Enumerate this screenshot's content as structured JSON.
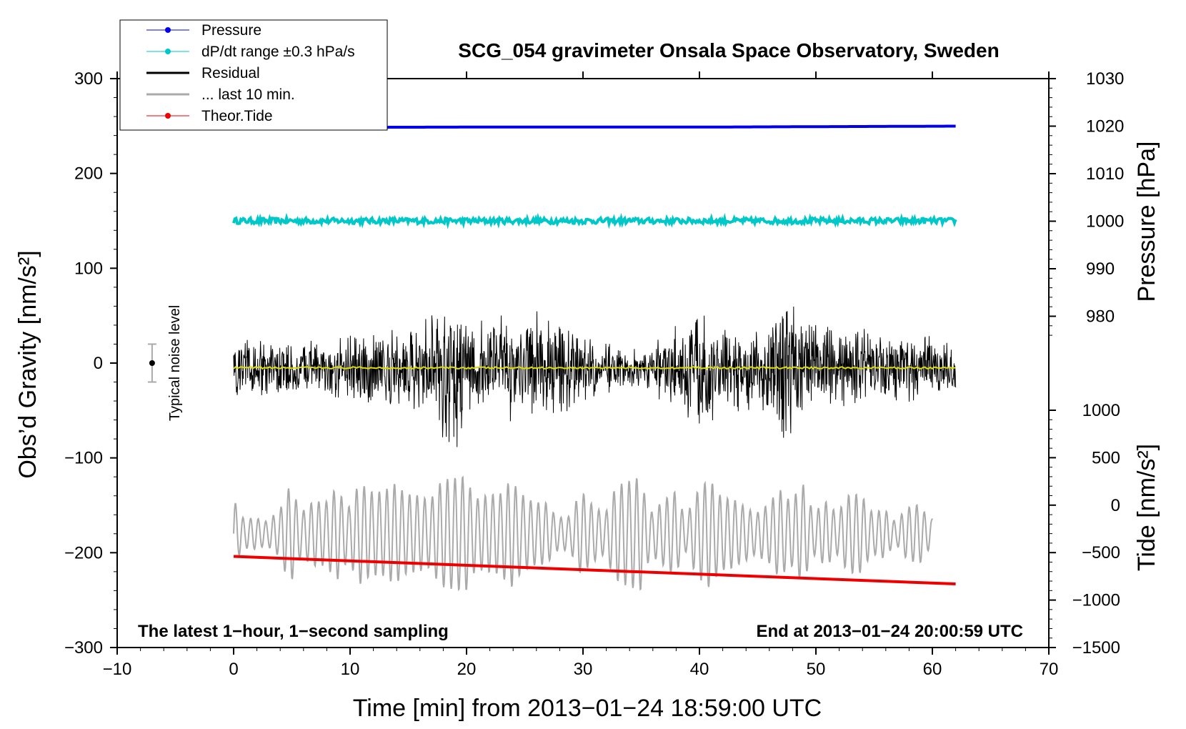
{
  "chart_data": {
    "type": "line",
    "title": "SCG_054 gravimeter Onsala Space Observatory, Sweden",
    "xlabel": "Time [min] from 2013−01−24 18:59:00 UTC",
    "ylabel": "Obs’d Gravity [nm/s²]",
    "ylabel_right_top": "Pressure [hPa]",
    "ylabel_right_bottom": "Tide [nm/s²]",
    "xlim": [
      -10,
      70
    ],
    "ylim": [
      -300,
      300
    ],
    "pressure_axis_range": [
      970,
      1030
    ],
    "tide_axis_range": [
      -1500,
      1000
    ],
    "x_ticks": [
      "−10",
      "0",
      "10",
      "20",
      "30",
      "40",
      "50",
      "60",
      "70"
    ],
    "y_ticks": [
      "−300",
      "−200",
      "−100",
      "0",
      "100",
      "200",
      "300"
    ],
    "pressure_ticks": [
      "980",
      "990",
      "1000",
      "1010",
      "1020",
      "1030"
    ],
    "tide_ticks": [
      "−1500",
      "−1000",
      "−500",
      "0",
      "500",
      "1000"
    ],
    "legend": [
      {
        "label": "Pressure",
        "color": "#0000ee",
        "marker": true
      },
      {
        "label": "dP/dt range ±0.3 hPa/s",
        "color": "#00c8c8",
        "marker": true
      },
      {
        "label": "Residual",
        "color": "#000000",
        "marker": false
      },
      {
        "label": "... last 10 min.",
        "color": "#aaaaaa",
        "marker": false
      },
      {
        "label": "Theor.Tide",
        "color": "#ee0000",
        "marker": true
      }
    ],
    "series": [
      {
        "name": "Pressure",
        "axis": "pressure_hPa",
        "x": [
          0,
          20,
          40,
          62
        ],
        "values": [
          1019.7,
          1019.8,
          1019.8,
          1020.0
        ]
      },
      {
        "name": "dP/dt range ±0.3 hPa/s",
        "axis": "gravity",
        "x": [
          0,
          62
        ],
        "values": [
          150,
          150
        ],
        "spread": 3
      },
      {
        "name": "Residual",
        "axis": "gravity",
        "x": [
          0,
          5,
          10,
          15,
          19.5,
          20,
          25,
          26,
          30,
          35,
          40,
          45,
          47.5,
          50,
          55,
          62
        ],
        "envelope": [
          40,
          30,
          40,
          45,
          95,
          55,
          60,
          75,
          40,
          20,
          70,
          45,
          90,
          50,
          45,
          30
        ]
      },
      {
        "name": "Residual running mean",
        "axis": "gravity",
        "color": "#dddd00",
        "x": [
          0,
          62
        ],
        "values": [
          -5,
          -5
        ]
      },
      {
        "name": "... last 10 min.",
        "axis": "tide",
        "x": [
          0,
          60
        ],
        "offset": 0,
        "amplitude_range": [
          100,
          1300
        ]
      },
      {
        "name": "Theor.Tide",
        "axis": "tide",
        "x": [
          0,
          62
        ],
        "values": [
          -540,
          -830
        ]
      }
    ],
    "noise_bar": {
      "label": "Typical noise level",
      "x": -7,
      "center": 0,
      "halfwidth": 20
    },
    "note_left": "The latest 1−hour, 1−second sampling",
    "note_right": "End at 2013−01−24 20:00:59 UTC"
  }
}
